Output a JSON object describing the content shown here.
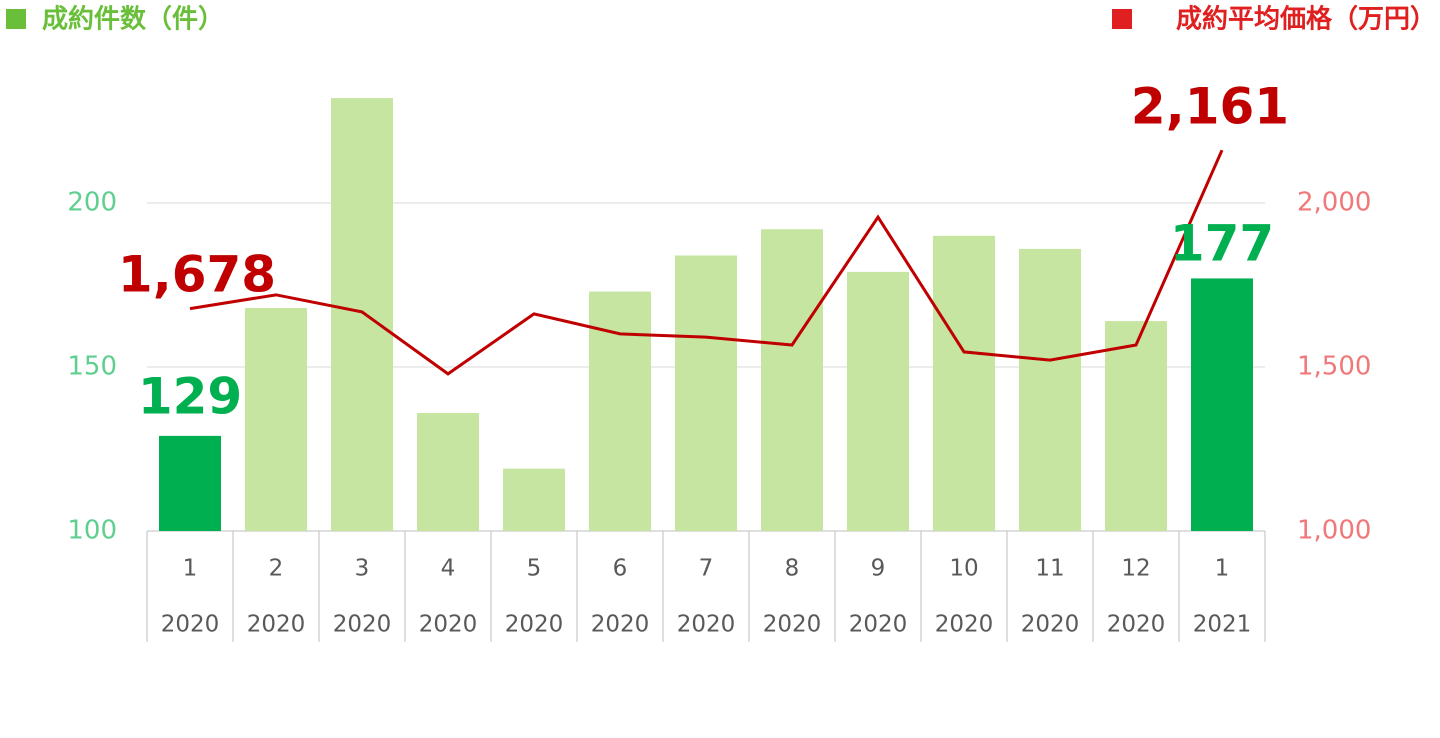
{
  "chart_data": {
    "type": "bar_line",
    "categories": [
      "1",
      "2",
      "3",
      "4",
      "5",
      "6",
      "7",
      "8",
      "9",
      "10",
      "11",
      "12",
      "1"
    ],
    "category_years": [
      "2020",
      "2020",
      "2020",
      "2020",
      "2020",
      "2020",
      "2020",
      "2020",
      "2020",
      "2020",
      "2020",
      "2020",
      "2021"
    ],
    "series": [
      {
        "name": "成約件数（件）",
        "type": "bar",
        "color": "#6abf3a",
        "bar_colors": [
          "#00b050",
          "#c5e5a0",
          "#c5e5a0",
          "#c5e5a0",
          "#c5e5a0",
          "#c5e5a0",
          "#c5e5a0",
          "#c5e5a0",
          "#c5e5a0",
          "#c5e5a0",
          "#c5e5a0",
          "#c5e5a0",
          "#00b050"
        ],
        "values": [
          129,
          168,
          232,
          136,
          119,
          173,
          184,
          192,
          179,
          190,
          186,
          164,
          177
        ],
        "value_labels": [
          "129",
          null,
          null,
          null,
          null,
          null,
          null,
          null,
          null,
          null,
          null,
          null,
          "177"
        ],
        "label_color": "#00b050"
      },
      {
        "name": "成約平均価格（万円）",
        "type": "line",
        "axis": "y2",
        "color": "#c00000",
        "legend_color": "#e02020",
        "values": [
          1678,
          1720,
          1668,
          1479,
          1662,
          1601,
          1591,
          1567,
          1957,
          1546,
          1521,
          1567,
          2161
        ],
        "value_labels": [
          "1,678",
          null,
          null,
          null,
          null,
          null,
          null,
          null,
          null,
          null,
          null,
          null,
          "2,161"
        ],
        "label_color": "#c00000"
      }
    ],
    "ylim": [
      100,
      250
    ],
    "yticks": [
      100,
      150,
      200
    ],
    "y2lim": [
      1000,
      2500
    ],
    "y2ticks": [
      {
        "value": 1000,
        "label": "1,000"
      },
      {
        "value": 1500,
        "label": "1,500"
      },
      {
        "value": 2000,
        "label": "2,000"
      }
    ],
    "ytick_color": "#5fcf8f",
    "y2tick_color": "#f07878",
    "grid": true
  }
}
